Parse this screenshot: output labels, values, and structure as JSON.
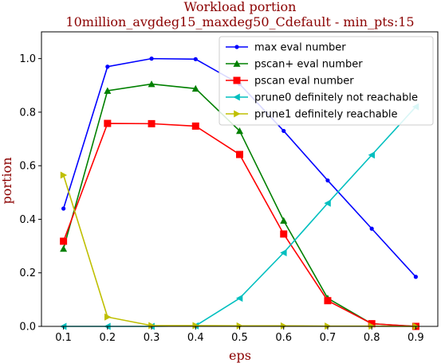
{
  "chart_data": {
    "type": "line",
    "title": "Workload portion",
    "subtitle": "10million_avgdeg15_maxdeg50_Cdefault - min_pts:15",
    "xlabel": "eps",
    "ylabel": "portion",
    "x": [
      0.1,
      0.2,
      0.3,
      0.4,
      0.5,
      0.6,
      0.7,
      0.8,
      0.9
    ],
    "x_ticks": [
      "0.1",
      "0.2",
      "0.3",
      "0.4",
      "0.5",
      "0.6",
      "0.7",
      "0.8",
      "0.9"
    ],
    "y_ticks": [
      "0.0",
      "0.2",
      "0.4",
      "0.6",
      "0.8",
      "1.0"
    ],
    "xlim": [
      0.05,
      0.95
    ],
    "ylim": [
      0,
      1.1
    ],
    "grid": false,
    "legend_position": "top-right",
    "series": [
      {
        "name": "max eval number",
        "color": "#0000ff",
        "marker": "point",
        "values": [
          0.44,
          0.97,
          1.0,
          0.998,
          0.905,
          0.73,
          0.545,
          0.365,
          0.185
        ]
      },
      {
        "name": "pscan+ eval number",
        "color": "#008000",
        "marker": "triangle-up",
        "values": [
          0.29,
          0.88,
          0.905,
          0.888,
          0.73,
          0.395,
          0.105,
          0.01,
          0.0
        ]
      },
      {
        "name": "pscan eval number",
        "color": "#ff0000",
        "marker": "square",
        "values": [
          0.318,
          0.758,
          0.757,
          0.748,
          0.642,
          0.345,
          0.096,
          0.01,
          0.0
        ]
      },
      {
        "name": "prune0 definitely not reachable",
        "color": "#00bfbf",
        "marker": "triangle-left",
        "values": [
          0.0,
          0.0,
          0.0,
          0.002,
          0.105,
          0.275,
          0.46,
          0.64,
          0.82
        ]
      },
      {
        "name": "prune1 definitely reachable",
        "color": "#bfbf00",
        "marker": "triangle-right",
        "values": [
          0.565,
          0.035,
          0.003,
          0.003,
          0.002,
          0.002,
          0.001,
          0.001,
          0.0
        ]
      }
    ]
  }
}
